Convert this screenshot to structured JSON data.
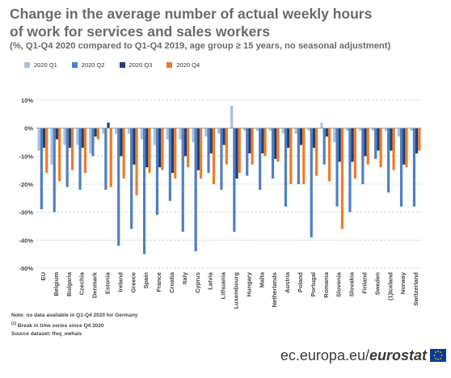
{
  "header": {
    "title_line1": "Change in the average number of actual weekly hours",
    "title_line2": "of work for services and sales workers",
    "subtitle": "(%, Q1-Q4 2020 compared to Q1-Q4 2019, age group ≥ 15 years, no seasonal adjustment)"
  },
  "colors": {
    "q1": "#a9c0e0",
    "q2": "#4f7fc2",
    "q3": "#1f3f7a",
    "q4": "#f07b26",
    "grid": "#d0d0d0",
    "axis_text": "#444444"
  },
  "chart_data": {
    "type": "bar",
    "ylim": [
      -50,
      10
    ],
    "yticks": [
      10,
      0,
      -10,
      -20,
      -30,
      -40,
      -50
    ],
    "ytick_labels": [
      "10%",
      "0%",
      "-10%",
      "-20%",
      "-30%",
      "-40%",
      "-50%"
    ],
    "legend_position": "top-left",
    "grid": true,
    "categories": [
      "EU",
      "Belgium",
      "Bulgaria",
      "Czechia",
      "Denmark",
      "Estonia",
      "Ireland",
      "Greece",
      "Spain",
      "France",
      "Croatia",
      "Italy",
      "Cyprus",
      "Latvia",
      "Lithuania",
      "Luxembourg",
      "Hungary",
      "Malta",
      "Netherlands",
      "Austria",
      "Poland",
      "Portugal",
      "Romania",
      "Slovenia",
      "Slovakia",
      "Finland",
      "Sweden",
      "(1)Iceland",
      "Norway",
      "Switzerland"
    ],
    "series": [
      {
        "name": "2020 Q1",
        "values": [
          -8,
          -13,
          -6,
          -6,
          -9,
          -2,
          -2,
          -2,
          -4,
          -6,
          -4,
          -4,
          -5,
          -3,
          -2,
          8,
          -1,
          -1,
          -1,
          -2,
          -2,
          -1,
          2,
          -5,
          -1,
          -1,
          -1,
          -1,
          -3,
          -1
        ]
      },
      {
        "name": "2020 Q2",
        "values": [
          -29,
          -30,
          -21,
          -22,
          -10,
          -22,
          -42,
          -36,
          -45,
          -31,
          -26,
          -37,
          -44,
          -16,
          -22,
          -37,
          -17,
          -22,
          -18,
          -28,
          -20,
          -39,
          -13,
          -28,
          -30,
          -20,
          -11,
          -23,
          -28,
          -28
        ]
      },
      {
        "name": "2020 Q3",
        "values": [
          -7,
          -4,
          -7,
          -7,
          -3,
          2,
          -10,
          -13,
          -14,
          -14,
          -16,
          -10,
          -15,
          -9,
          -6,
          -18,
          -9,
          -9,
          -11,
          -7,
          -6,
          -7,
          -3,
          -12,
          -12,
          -10,
          -8,
          -8,
          -13,
          -9
        ]
      },
      {
        "name": "2020 Q4",
        "values": [
          -16,
          -19,
          -15,
          -16,
          -4,
          -21,
          -18,
          -24,
          -16,
          -15,
          -18,
          -14,
          -18,
          -20,
          -13,
          -16,
          -13,
          -10,
          -12,
          -20,
          -20,
          -17,
          -19,
          -36,
          -18,
          -13,
          -14,
          -15,
          -14,
          -8
        ]
      }
    ]
  },
  "notes": {
    "line1": "Note: no data available in Q1-Q4 2020 for Germany",
    "line2_sup": "(1)",
    "line2": " Break in time series since Q4 2020",
    "line3": "Source dataset: lfsq_ewhais"
  },
  "footer": {
    "brand_plain": "ec.europa.eu/",
    "brand_bold": "eurostat"
  }
}
